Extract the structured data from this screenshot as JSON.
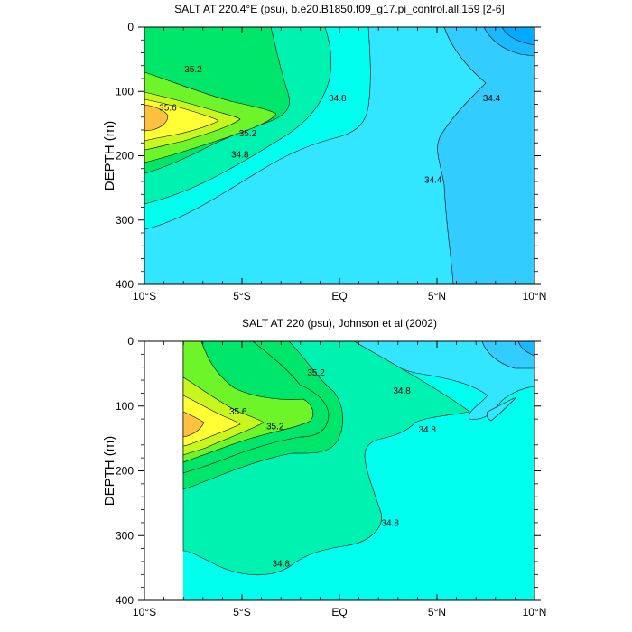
{
  "chart_data": [
    {
      "type": "contour",
      "title": "SALT AT 220.4°E (psu), b.e20.B1850.f09_g17.pi_control.all.159 [2-6]",
      "ylabel": "DEPTH (m)",
      "xlim": [
        -10,
        10
      ],
      "ylim": [
        400,
        0
      ],
      "x_ticks": [
        {
          "value": -10,
          "label": "10°S"
        },
        {
          "value": -5,
          "label": "5°S"
        },
        {
          "value": 0,
          "label": "EQ"
        },
        {
          "value": 5,
          "label": "5°N"
        },
        {
          "value": 10,
          "label": "10°N"
        }
      ],
      "y_ticks": [
        0,
        100,
        200,
        300,
        400
      ],
      "levels": [
        34.4,
        34.6,
        34.8,
        35.0,
        35.2,
        35.4,
        35.6
      ],
      "contour_labels": [
        {
          "text": "35.2",
          "x": -7.5,
          "y": 65
        },
        {
          "text": "35.6",
          "x": -8.8,
          "y": 125
        },
        {
          "text": "35.2",
          "x": -4.7,
          "y": 165
        },
        {
          "text": "34.8",
          "x": -5.1,
          "y": 198
        },
        {
          "text": "34.8",
          "x": -0.1,
          "y": 110
        },
        {
          "text": "34.4",
          "x": 7.8,
          "y": 110
        },
        {
          "text": "34.4",
          "x": 4.8,
          "y": 237
        }
      ]
    },
    {
      "type": "contour",
      "title": "SALT AT 220 (psu), Johnson et al (2002)",
      "ylabel": "DEPTH (m)",
      "xlim": [
        -10,
        10
      ],
      "ylim": [
        400,
        0
      ],
      "x_ticks": [
        {
          "value": -10,
          "label": "10°S"
        },
        {
          "value": -5,
          "label": "5°S"
        },
        {
          "value": 0,
          "label": "EQ"
        },
        {
          "value": 5,
          "label": "5°N"
        },
        {
          "value": 10,
          "label": "10°N"
        }
      ],
      "y_ticks": [
        0,
        100,
        200,
        300,
        400
      ],
      "levels": [
        34.4,
        34.6,
        34.8,
        35.0,
        35.2,
        35.4,
        35.6
      ],
      "contour_labels": [
        {
          "text": "35.2",
          "x": -1.2,
          "y": 48
        },
        {
          "text": "35.6",
          "x": -5.2,
          "y": 108
        },
        {
          "text": "35.2",
          "x": -3.3,
          "y": 131
        },
        {
          "text": "34.8",
          "x": 3.2,
          "y": 76
        },
        {
          "text": "34.8",
          "x": 4.5,
          "y": 136
        },
        {
          "text": "34.8",
          "x": 2.6,
          "y": 280
        },
        {
          "text": "34.8",
          "x": -3.0,
          "y": 343
        }
      ]
    }
  ],
  "colors": {
    "s_lt_34_2": "#00aaff",
    "s_34_2_34_4": "#33ccff",
    "s_34_4_34_6": "#33e6ff",
    "s_34_6_34_8": "#00ffee",
    "s_34_8_35_0": "#00f2b0",
    "s_35_0_35_2": "#00e66a",
    "s_35_2_35_4": "#6ef52a",
    "s_35_4_35_6": "#c8f71e",
    "s_35_6_35_8": "#ffff33",
    "s_gt_35_8": "#ffc040"
  }
}
